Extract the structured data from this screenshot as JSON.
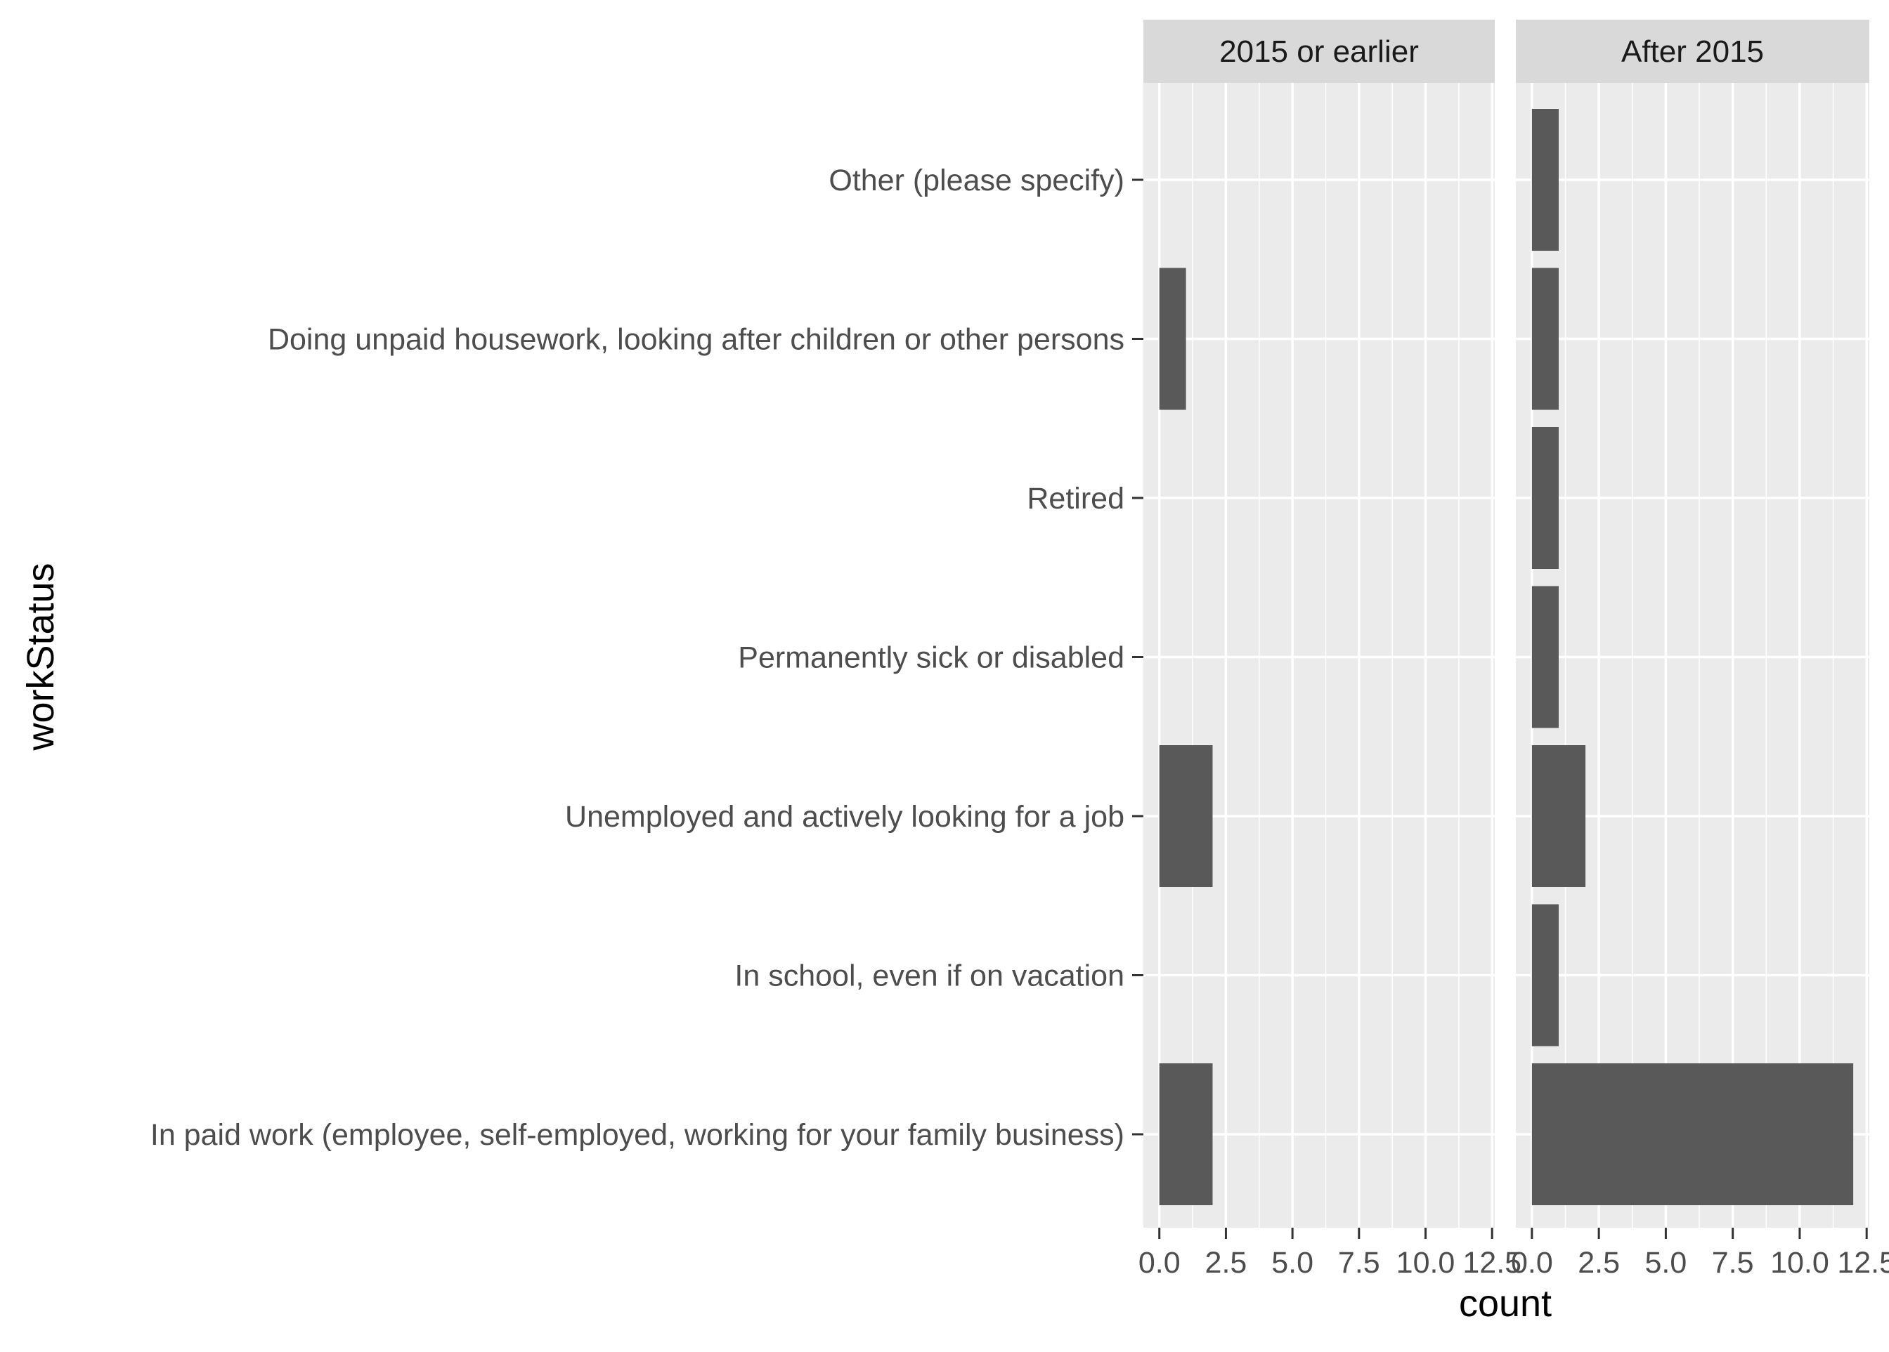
{
  "chart_data": {
    "type": "bar",
    "orientation": "horizontal",
    "facet_labels": [
      "2015 or earlier",
      "After 2015"
    ],
    "categories": [
      "Other (please specify)",
      "Doing unpaid housework, looking after children or other persons",
      "Retired",
      "Permanently sick or disabled",
      "Unemployed and actively looking for a job",
      "In school, even if on vacation",
      "In paid work (employee, self-employed, working for your family business)"
    ],
    "series": [
      {
        "facet": "2015 or earlier",
        "values": [
          0,
          1,
          0,
          0,
          2,
          0,
          2
        ]
      },
      {
        "facet": "After 2015",
        "values": [
          1,
          1,
          1,
          1,
          2,
          1,
          12
        ]
      }
    ],
    "xlim": [
      -0.6,
      12.6
    ],
    "x_ticks": [
      "0.0",
      "2.5",
      "5.0",
      "7.5",
      "10.0",
      "12.5"
    ],
    "x_tick_values": [
      0,
      2.5,
      5,
      7.5,
      10,
      12.5
    ],
    "xlabel": "count",
    "ylabel": "workStatus",
    "grid": true,
    "legend": "none",
    "colors": {
      "bar": "#595959",
      "panel": "#ebebeb",
      "strip": "#d9d9d9",
      "grid": "#ffffff",
      "text": "#4d4d4d",
      "title": "#000000"
    }
  }
}
